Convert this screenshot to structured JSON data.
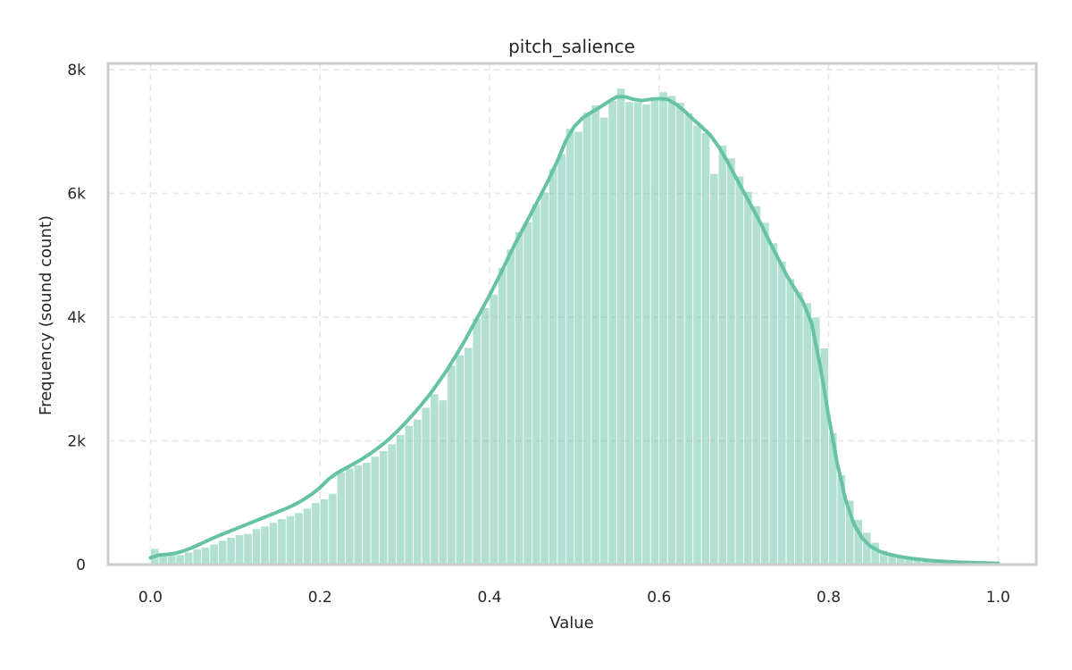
{
  "chart_data": {
    "type": "bar",
    "subtype": "histogram-with-kde",
    "title": "pitch_salience",
    "xlabel": "Value",
    "ylabel": "Frequency (sound count)",
    "xlim": [
      -0.05,
      1.045
    ],
    "ylim": [
      0,
      8100
    ],
    "x_ticks": [
      0.0,
      0.2,
      0.4,
      0.6,
      0.8,
      1.0
    ],
    "x_tick_labels": [
      "0.0",
      "0.2",
      "0.4",
      "0.6",
      "0.8",
      "1.0"
    ],
    "y_ticks": [
      0,
      2000,
      4000,
      6000,
      8000
    ],
    "y_tick_labels": [
      "0",
      "2k",
      "4k",
      "6k",
      "8k"
    ],
    "grid": true,
    "legend": "none",
    "bar_color": "#66c2a5",
    "line_color": "#66c2a5",
    "bin_start": 0.0,
    "bin_width": 0.01,
    "bin_counts": [
      260,
      170,
      170,
      160,
      200,
      250,
      280,
      330,
      390,
      440,
      480,
      500,
      580,
      620,
      680,
      740,
      790,
      840,
      910,
      1000,
      1060,
      1150,
      1500,
      1560,
      1610,
      1650,
      1750,
      1840,
      1950,
      2100,
      2250,
      2350,
      2540,
      2760,
      2660,
      3220,
      3390,
      3510,
      3980,
      4150,
      4370,
      4800,
      5100,
      5380,
      5540,
      5830,
      6020,
      6400,
      6640,
      7050,
      7000,
      7310,
      7430,
      7230,
      7500,
      7700,
      7480,
      7480,
      7440,
      7500,
      7640,
      7580,
      7470,
      7300,
      7100,
      6980,
      6320,
      6780,
      6570,
      6280,
      6030,
      5800,
      5530,
      5200,
      4900,
      4620,
      4410,
      4230,
      4000,
      3500,
      2130,
      1450,
      1040,
      730,
      520,
      360,
      230,
      180,
      140,
      100,
      80,
      60,
      50,
      40,
      30,
      25,
      20,
      15,
      12,
      10
    ],
    "kde_points": [
      [
        0.0,
        110
      ],
      [
        0.01,
        155
      ],
      [
        0.02,
        165
      ],
      [
        0.03,
        185
      ],
      [
        0.04,
        225
      ],
      [
        0.05,
        280
      ],
      [
        0.06,
        340
      ],
      [
        0.07,
        405
      ],
      [
        0.08,
        465
      ],
      [
        0.09,
        520
      ],
      [
        0.1,
        575
      ],
      [
        0.11,
        630
      ],
      [
        0.12,
        685
      ],
      [
        0.13,
        740
      ],
      [
        0.14,
        795
      ],
      [
        0.15,
        850
      ],
      [
        0.16,
        905
      ],
      [
        0.17,
        970
      ],
      [
        0.18,
        1045
      ],
      [
        0.19,
        1135
      ],
      [
        0.2,
        1245
      ],
      [
        0.21,
        1380
      ],
      [
        0.22,
        1480
      ],
      [
        0.23,
        1555
      ],
      [
        0.24,
        1630
      ],
      [
        0.25,
        1710
      ],
      [
        0.26,
        1800
      ],
      [
        0.27,
        1900
      ],
      [
        0.28,
        2010
      ],
      [
        0.29,
        2140
      ],
      [
        0.3,
        2280
      ],
      [
        0.31,
        2430
      ],
      [
        0.32,
        2590
      ],
      [
        0.33,
        2760
      ],
      [
        0.34,
        2950
      ],
      [
        0.35,
        3150
      ],
      [
        0.36,
        3370
      ],
      [
        0.37,
        3600
      ],
      [
        0.38,
        3850
      ],
      [
        0.39,
        4100
      ],
      [
        0.4,
        4350
      ],
      [
        0.41,
        4620
      ],
      [
        0.42,
        4900
      ],
      [
        0.43,
        5180
      ],
      [
        0.44,
        5440
      ],
      [
        0.45,
        5700
      ],
      [
        0.46,
        5960
      ],
      [
        0.47,
        6230
      ],
      [
        0.48,
        6520
      ],
      [
        0.49,
        6850
      ],
      [
        0.5,
        7080
      ],
      [
        0.51,
        7220
      ],
      [
        0.52,
        7310
      ],
      [
        0.53,
        7390
      ],
      [
        0.54,
        7480
      ],
      [
        0.55,
        7560
      ],
      [
        0.56,
        7560
      ],
      [
        0.57,
        7520
      ],
      [
        0.58,
        7500
      ],
      [
        0.59,
        7520
      ],
      [
        0.6,
        7530
      ],
      [
        0.61,
        7520
      ],
      [
        0.62,
        7440
      ],
      [
        0.63,
        7330
      ],
      [
        0.64,
        7200
      ],
      [
        0.65,
        7080
      ],
      [
        0.66,
        6950
      ],
      [
        0.67,
        6760
      ],
      [
        0.68,
        6530
      ],
      [
        0.69,
        6270
      ],
      [
        0.7,
        6020
      ],
      [
        0.71,
        5770
      ],
      [
        0.72,
        5510
      ],
      [
        0.73,
        5230
      ],
      [
        0.74,
        4960
      ],
      [
        0.75,
        4690
      ],
      [
        0.76,
        4460
      ],
      [
        0.77,
        4240
      ],
      [
        0.78,
        3900
      ],
      [
        0.79,
        3220
      ],
      [
        0.8,
        2400
      ],
      [
        0.81,
        1650
      ],
      [
        0.82,
        1050
      ],
      [
        0.83,
        650
      ],
      [
        0.84,
        420
      ],
      [
        0.85,
        290
      ],
      [
        0.86,
        215
      ],
      [
        0.87,
        170
      ],
      [
        0.88,
        140
      ],
      [
        0.89,
        115
      ],
      [
        0.9,
        95
      ],
      [
        0.92,
        65
      ],
      [
        0.95,
        40
      ],
      [
        1.0,
        20
      ]
    ]
  }
}
